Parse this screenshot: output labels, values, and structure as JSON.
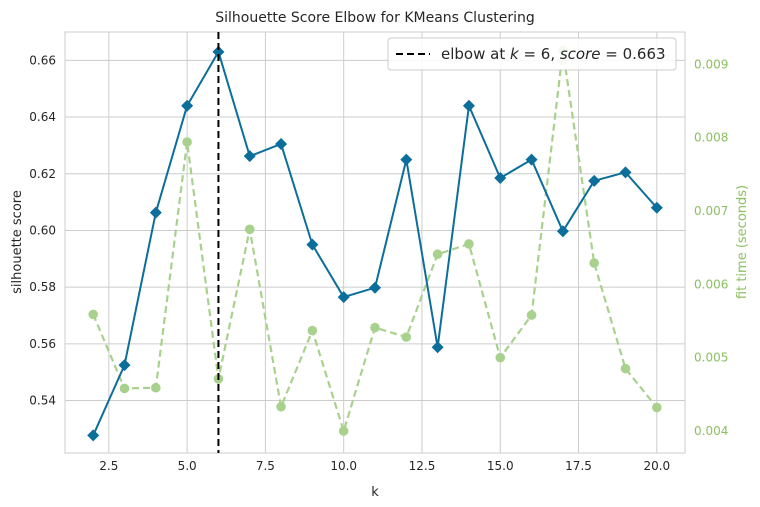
{
  "chart_data": {
    "type": "line",
    "title": "Silhouette Score Elbow for KMeans Clustering",
    "xlabel": "k",
    "ylabel": "silhouette score",
    "y2label": "fit time (seconds)",
    "xlim": [
      1.1,
      20.9
    ],
    "ylim": [
      0.5215,
      0.67
    ],
    "y2lim": [
      0.0037,
      0.00944
    ],
    "x_ticks": [
      2.5,
      5.0,
      7.5,
      10.0,
      12.5,
      15.0,
      17.5,
      20.0
    ],
    "x_tick_labels": [
      "2.5",
      "5.0",
      "7.5",
      "10.0",
      "12.5",
      "15.0",
      "17.5",
      "20.0"
    ],
    "y_ticks": [
      0.54,
      0.56,
      0.58,
      0.6,
      0.62,
      0.64,
      0.66
    ],
    "y_tick_labels": [
      "0.54",
      "0.56",
      "0.58",
      "0.60",
      "0.62",
      "0.64",
      "0.66"
    ],
    "y2_ticks": [
      0.004,
      0.005,
      0.006,
      0.007,
      0.008,
      0.009
    ],
    "y2_tick_labels": [
      "0.004",
      "0.005",
      "0.006",
      "0.007",
      "0.008",
      "0.009"
    ],
    "grid": true,
    "series": [
      {
        "role": "score",
        "axis": "left",
        "color": "#0c6e9a",
        "marker": "diamond",
        "x": [
          2,
          3,
          4,
          5,
          6,
          7,
          8,
          9,
          10,
          11,
          12,
          13,
          14,
          15,
          16,
          17,
          18,
          19,
          20
        ],
        "values": [
          0.5277,
          0.5525,
          0.6063,
          0.644,
          0.663,
          0.6262,
          0.6305,
          0.595,
          0.5765,
          0.5798,
          0.625,
          0.5588,
          0.644,
          0.6185,
          0.625,
          0.5997,
          0.6175,
          0.6205,
          0.608
        ]
      },
      {
        "role": "fit_time",
        "axis": "right",
        "color": "#a9d18e",
        "marker": "circle",
        "dashed": true,
        "x": [
          2,
          3,
          4,
          5,
          6,
          7,
          8,
          9,
          10,
          11,
          12,
          13,
          14,
          15,
          16,
          17,
          18,
          19,
          20
        ],
        "values": [
          0.00559,
          0.00458,
          0.00459,
          0.00794,
          0.00471,
          0.00675,
          0.00433,
          0.00537,
          0.004,
          0.00541,
          0.00528,
          0.00641,
          0.00655,
          0.005,
          0.00558,
          0.00919,
          0.00629,
          0.00485,
          0.00432
        ]
      }
    ],
    "elbow": {
      "k": 6,
      "color": "#000000",
      "legend_prefix": "elbow at ",
      "legend_k_var": "k",
      "legend_k_value": " = 6, ",
      "legend_score_var": "score",
      "legend_score_value": " = 0.663"
    },
    "legend_position": "top-right"
  }
}
